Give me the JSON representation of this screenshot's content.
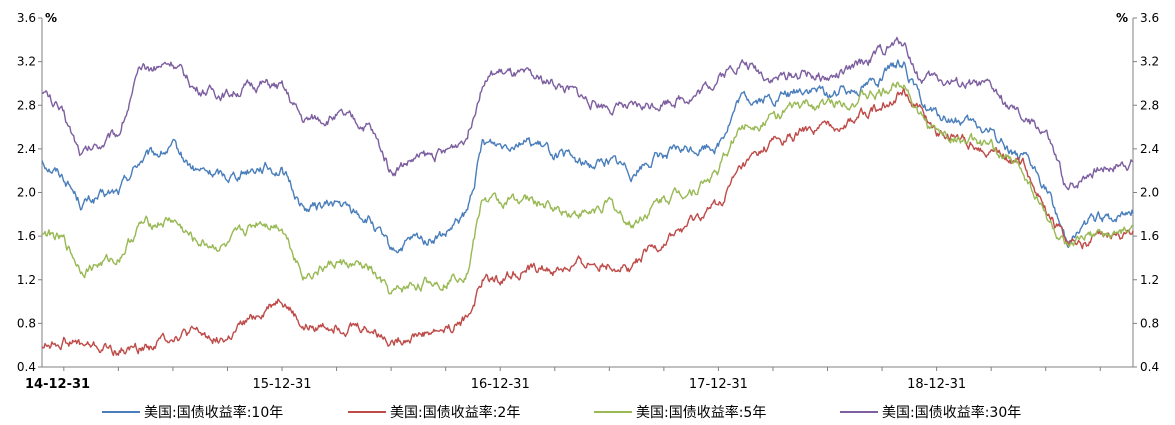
{
  "chart_data": {
    "type": "line",
    "title": "",
    "y_unit_left": "%",
    "y_unit_right": "%",
    "ylim": [
      0.4,
      3.6
    ],
    "y_ticks": [
      "0.4",
      "0.8",
      "1.2",
      "1.6",
      "2.0",
      "2.4",
      "2.8",
      "3.2",
      "3.6"
    ],
    "x_tick_labels": [
      "14-12-31",
      "15-12-31",
      "16-12-31",
      "17-12-31",
      "18-12-31"
    ],
    "x_range_years": [
      2014.9,
      2019.9
    ],
    "legend_position": "bottom",
    "grid": false,
    "series": [
      {
        "name": "美国:国债收益率:10年",
        "color": "#4a7ebb",
        "x": [
          2014.9,
          2015.0,
          2015.08,
          2015.25,
          2015.35,
          2015.5,
          2015.6,
          2015.75,
          2015.9,
          2016.0,
          2016.1,
          2016.25,
          2016.4,
          2016.5,
          2016.6,
          2016.75,
          2016.85,
          2016.92,
          2017.0,
          2017.1,
          2017.25,
          2017.4,
          2017.5,
          2017.6,
          2017.75,
          2017.9,
          2018.0,
          2018.1,
          2018.25,
          2018.4,
          2018.5,
          2018.6,
          2018.75,
          2018.85,
          2018.92,
          2019.0,
          2019.1,
          2019.25,
          2019.4,
          2019.5,
          2019.6,
          2019.7,
          2019.8,
          2019.9
        ],
        "values": [
          2.3,
          2.15,
          1.9,
          2.0,
          2.3,
          2.4,
          2.2,
          2.15,
          2.25,
          2.2,
          1.85,
          1.9,
          1.75,
          1.45,
          1.55,
          1.6,
          1.8,
          2.45,
          2.45,
          2.5,
          2.35,
          2.25,
          2.3,
          2.2,
          2.35,
          2.4,
          2.45,
          2.85,
          2.85,
          2.95,
          2.9,
          2.95,
          3.05,
          3.2,
          2.85,
          2.7,
          2.65,
          2.55,
          2.3,
          2.05,
          1.55,
          1.75,
          1.75,
          1.85
        ]
      },
      {
        "name": "美国:国债收益率:2年",
        "color": "#be4b48",
        "x": [
          2014.9,
          2015.0,
          2015.08,
          2015.25,
          2015.4,
          2015.5,
          2015.6,
          2015.75,
          2015.9,
          2016.0,
          2016.1,
          2016.25,
          2016.4,
          2016.5,
          2016.6,
          2016.75,
          2016.85,
          2016.92,
          2017.0,
          2017.1,
          2017.25,
          2017.4,
          2017.5,
          2017.6,
          2017.75,
          2017.9,
          2018.0,
          2018.1,
          2018.25,
          2018.4,
          2018.5,
          2018.6,
          2018.75,
          2018.85,
          2018.92,
          2019.0,
          2019.1,
          2019.25,
          2019.4,
          2019.5,
          2019.6,
          2019.7,
          2019.8,
          2019.9
        ],
        "values": [
          0.6,
          0.65,
          0.6,
          0.55,
          0.6,
          0.7,
          0.7,
          0.65,
          0.9,
          1.05,
          0.75,
          0.8,
          0.75,
          0.65,
          0.7,
          0.75,
          0.85,
          1.2,
          1.22,
          1.3,
          1.28,
          1.35,
          1.35,
          1.32,
          1.55,
          1.75,
          1.88,
          2.2,
          2.45,
          2.55,
          2.6,
          2.65,
          2.8,
          2.95,
          2.75,
          2.55,
          2.5,
          2.4,
          2.25,
          1.85,
          1.55,
          1.55,
          1.6,
          1.65
        ]
      },
      {
        "name": "美国:国债收益率:5年",
        "color": "#98b954",
        "x": [
          2014.9,
          2015.0,
          2015.08,
          2015.25,
          2015.35,
          2015.5,
          2015.6,
          2015.75,
          2015.9,
          2016.0,
          2016.1,
          2016.25,
          2016.4,
          2016.5,
          2016.6,
          2016.75,
          2016.85,
          2016.92,
          2017.0,
          2017.1,
          2017.25,
          2017.4,
          2017.5,
          2017.6,
          2017.75,
          2017.9,
          2018.0,
          2018.1,
          2018.25,
          2018.4,
          2018.5,
          2018.6,
          2018.75,
          2018.85,
          2018.92,
          2019.0,
          2019.1,
          2019.25,
          2019.4,
          2019.5,
          2019.6,
          2019.7,
          2019.8,
          2019.9
        ],
        "values": [
          1.65,
          1.55,
          1.3,
          1.4,
          1.7,
          1.75,
          1.55,
          1.5,
          1.75,
          1.7,
          1.25,
          1.35,
          1.3,
          1.05,
          1.15,
          1.2,
          1.3,
          1.95,
          1.9,
          1.95,
          1.85,
          1.8,
          1.9,
          1.7,
          1.95,
          2.05,
          2.2,
          2.6,
          2.7,
          2.8,
          2.8,
          2.85,
          2.9,
          3.05,
          2.7,
          2.55,
          2.5,
          2.4,
          2.2,
          1.8,
          1.45,
          1.6,
          1.6,
          1.65
        ]
      },
      {
        "name": "美国:国债收益率:30年",
        "color": "#7d5fa0",
        "x": [
          2014.9,
          2015.0,
          2015.08,
          2015.25,
          2015.35,
          2015.5,
          2015.6,
          2015.75,
          2015.9,
          2016.0,
          2016.1,
          2016.25,
          2016.4,
          2016.5,
          2016.6,
          2016.75,
          2016.85,
          2016.92,
          2017.0,
          2017.1,
          2017.25,
          2017.4,
          2017.5,
          2017.6,
          2017.75,
          2017.9,
          2018.0,
          2018.1,
          2018.25,
          2018.4,
          2018.5,
          2018.6,
          2018.75,
          2018.85,
          2018.92,
          2019.0,
          2019.1,
          2019.25,
          2019.4,
          2019.5,
          2019.6,
          2019.7,
          2019.8,
          2019.9
        ],
        "values": [
          2.95,
          2.7,
          2.35,
          2.55,
          3.1,
          3.2,
          2.95,
          2.9,
          3.0,
          2.95,
          2.65,
          2.7,
          2.6,
          2.2,
          2.3,
          2.35,
          2.55,
          3.05,
          3.1,
          3.05,
          3.0,
          2.85,
          2.8,
          2.75,
          2.85,
          2.9,
          3.05,
          3.2,
          3.05,
          3.1,
          3.05,
          3.1,
          3.3,
          3.4,
          3.05,
          3.05,
          3.0,
          2.95,
          2.65,
          2.55,
          2.0,
          2.2,
          2.25,
          2.3
        ]
      }
    ]
  }
}
